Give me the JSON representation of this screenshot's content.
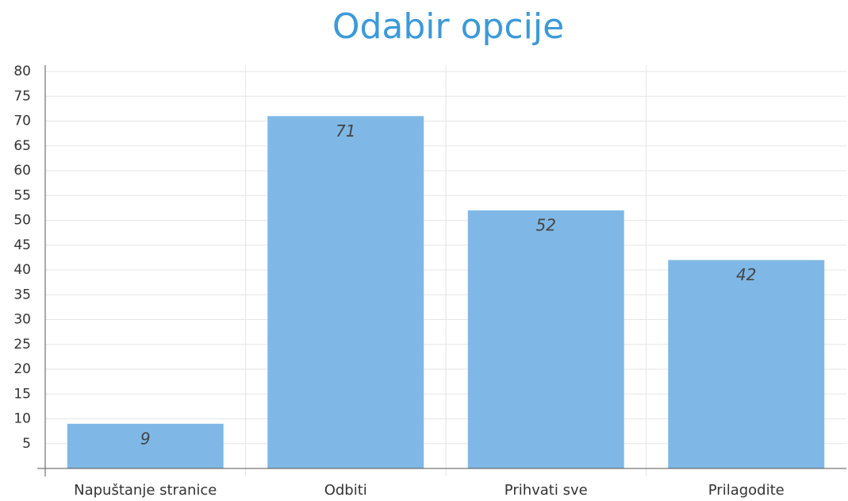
{
  "chart_data": {
    "type": "bar",
    "title": "Odabir opcije",
    "categories": [
      "Napuštanje stranice",
      "Odbiti",
      "Prihvati sve",
      "Prilagodite"
    ],
    "values": [
      9,
      71,
      52,
      42
    ],
    "color": "#7fb8e6",
    "ylim": [
      0,
      80
    ],
    "yticks": [
      5,
      10,
      15,
      20,
      25,
      30,
      35,
      40,
      45,
      50,
      55,
      60,
      65,
      70,
      75,
      80
    ],
    "grid": true
  }
}
